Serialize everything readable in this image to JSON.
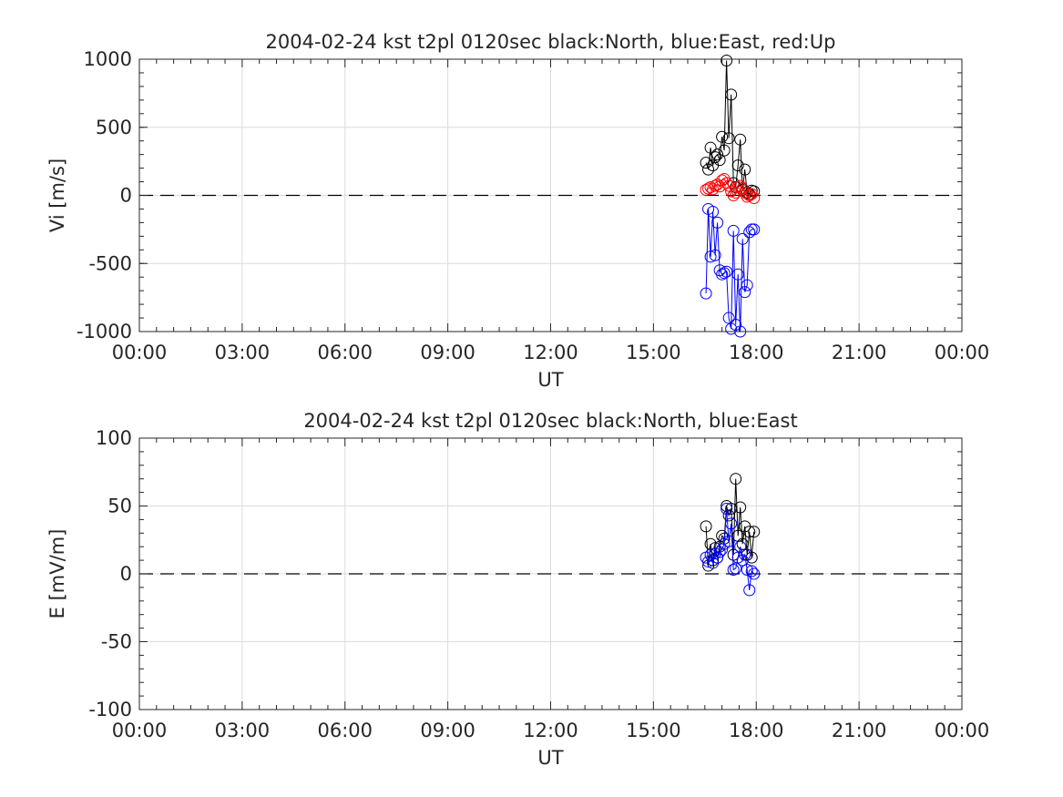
{
  "chart_data": [
    {
      "type": "line",
      "title": "2004-02-24 kst t2pl 0120sec black:North, blue:East, red:Up",
      "xlabel": "UT",
      "ylabel": "Vi [m/s]",
      "xlim": [
        "00:00",
        "24:00"
      ],
      "x_ticks": [
        "00:00",
        "03:00",
        "06:00",
        "09:00",
        "12:00",
        "15:00",
        "18:00",
        "21:00",
        "00:00"
      ],
      "ylim": [
        -1000,
        1000
      ],
      "y_ticks": [
        "-1000",
        "-500",
        "0",
        "500",
        "1000"
      ],
      "grid": true,
      "zero_line": "dashed",
      "marker": "open-circle",
      "x": [
        "16:32",
        "16:36",
        "16:40",
        "16:44",
        "16:48",
        "16:52",
        "16:56",
        "17:00",
        "17:04",
        "17:08",
        "17:12",
        "17:16",
        "17:20",
        "17:24",
        "17:28",
        "17:32",
        "17:36",
        "17:40",
        "17:44",
        "17:48",
        "17:52",
        "17:56"
      ],
      "series": [
        {
          "color": "#000000",
          "values": [
            240,
            190,
            350,
            220,
            280,
            300,
            260,
            430,
            330,
            990,
            420,
            740,
            90,
            60,
            220,
            410,
            40,
            190,
            20,
            10,
            35,
            30
          ]
        },
        {
          "color": "#0000ff",
          "values": [
            -720,
            -100,
            -450,
            -120,
            -440,
            -200,
            -550,
            -580,
            -570,
            -560,
            -900,
            -980,
            -260,
            -950,
            -580,
            -1000,
            -320,
            -710,
            -660,
            -270,
            -250,
            -250
          ]
        },
        {
          "color": "#ff0000",
          "values": [
            40,
            50,
            60,
            45,
            70,
            80,
            65,
            110,
            120,
            90,
            70,
            30,
            0,
            20,
            60,
            70,
            50,
            20,
            -10,
            0,
            10,
            -20
          ]
        }
      ]
    },
    {
      "type": "line",
      "title": "2004-02-24 kst t2pl 0120sec black:North, blue:East",
      "xlabel": "UT",
      "ylabel": "E [mV/m]",
      "xlim": [
        "00:00",
        "24:00"
      ],
      "x_ticks": [
        "00:00",
        "03:00",
        "06:00",
        "09:00",
        "12:00",
        "15:00",
        "18:00",
        "21:00",
        "00:00"
      ],
      "ylim": [
        -100,
        100
      ],
      "y_ticks": [
        "-100",
        "-50",
        "0",
        "50",
        "100"
      ],
      "grid": true,
      "zero_line": "dashed",
      "marker": "open-circle",
      "x": [
        "16:32",
        "16:36",
        "16:40",
        "16:44",
        "16:48",
        "16:52",
        "16:56",
        "17:00",
        "17:04",
        "17:08",
        "17:12",
        "17:16",
        "17:20",
        "17:24",
        "17:28",
        "17:32",
        "17:36",
        "17:40",
        "17:44",
        "17:48",
        "17:52",
        "17:56"
      ],
      "series": [
        {
          "color": "#000000",
          "values": [
            35,
            6,
            22,
            10,
            19,
            12,
            20,
            28,
            26,
            50,
            43,
            48,
            14,
            70,
            28,
            49,
            22,
            35,
            14,
            31,
            12,
            31
          ]
        },
        {
          "color": "#0000ff",
          "values": [
            12,
            9,
            14,
            8,
            15,
            12,
            16,
            18,
            22,
            48,
            24,
            37,
            3,
            4,
            12,
            20,
            10,
            14,
            3,
            -12,
            2,
            0
          ]
        }
      ]
    }
  ]
}
